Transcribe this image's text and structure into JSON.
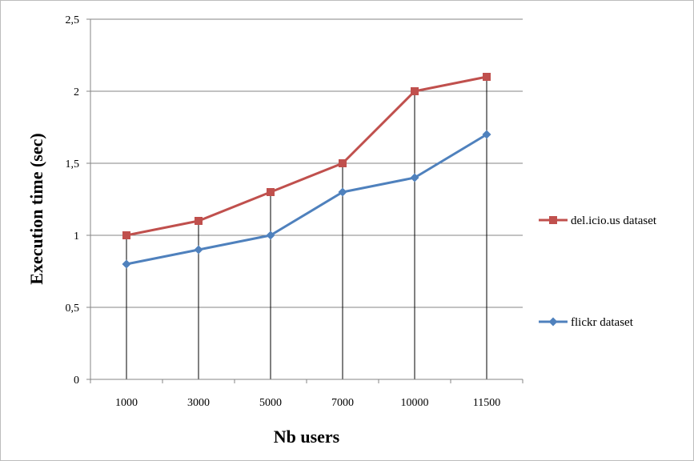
{
  "chart_data": {
    "type": "line",
    "categories": [
      "1000",
      "3000",
      "5000",
      "7000",
      "10000",
      "11500"
    ],
    "series": [
      {
        "name": "del.icio.us dataset",
        "values": [
          1.0,
          1.1,
          1.3,
          1.5,
          2.0,
          2.1
        ],
        "color": "#c0504d",
        "marker": "square"
      },
      {
        "name": "flickr dataset",
        "values": [
          0.8,
          0.9,
          1.0,
          1.3,
          1.4,
          1.7
        ],
        "color": "#4f81bd",
        "marker": "diamond"
      }
    ],
    "title": "",
    "xlabel": "Nb users",
    "ylabel": "Execution time (sec)",
    "ylim": [
      0,
      2.5
    ],
    "yticks": [
      0,
      0.5,
      1,
      1.5,
      2,
      2.5
    ],
    "ytick_labels": [
      "0",
      "0,5",
      "1",
      "1,5",
      "2",
      "2,5"
    ],
    "grid": true,
    "drop_lines": true,
    "legend_position": "right"
  }
}
